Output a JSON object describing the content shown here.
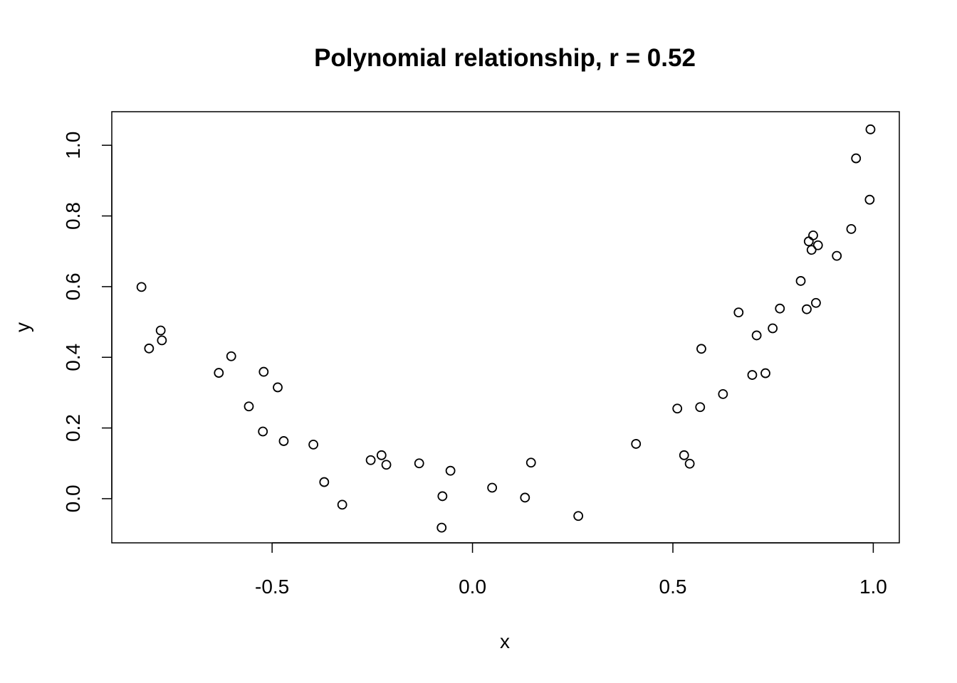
{
  "chart_data": {
    "type": "scatter",
    "title": "Polynomial relationship, r = 0.52",
    "xlabel": "x",
    "ylabel": "y",
    "xlim": [
      -0.9,
      1.065
    ],
    "ylim": [
      -0.125,
      1.095
    ],
    "xticks": [
      -0.5,
      0.0,
      0.5,
      1.0
    ],
    "xtick_labels": [
      "-0.5",
      "0.0",
      "0.5",
      "1.0"
    ],
    "yticks": [
      0.0,
      0.2,
      0.4,
      0.6,
      0.8,
      1.0
    ],
    "ytick_labels": [
      "0.0",
      "0.2",
      "0.4",
      "0.6",
      "0.8",
      "1.0"
    ],
    "grid": false,
    "marker": "open-circle",
    "points": [
      {
        "x": -0.826,
        "y": 0.599
      },
      {
        "x": -0.807,
        "y": 0.425
      },
      {
        "x": -0.778,
        "y": 0.476
      },
      {
        "x": -0.775,
        "y": 0.448
      },
      {
        "x": -0.633,
        "y": 0.356
      },
      {
        "x": -0.602,
        "y": 0.403
      },
      {
        "x": -0.558,
        "y": 0.261
      },
      {
        "x": -0.521,
        "y": 0.359
      },
      {
        "x": -0.523,
        "y": 0.19
      },
      {
        "x": -0.486,
        "y": 0.315
      },
      {
        "x": -0.471,
        "y": 0.163
      },
      {
        "x": -0.397,
        "y": 0.153
      },
      {
        "x": -0.37,
        "y": 0.047
      },
      {
        "x": -0.325,
        "y": -0.017
      },
      {
        "x": -0.254,
        "y": 0.109
      },
      {
        "x": -0.227,
        "y": 0.123
      },
      {
        "x": -0.215,
        "y": 0.096
      },
      {
        "x": -0.133,
        "y": 0.1
      },
      {
        "x": -0.077,
        "y": -0.082
      },
      {
        "x": -0.075,
        "y": 0.007
      },
      {
        "x": -0.055,
        "y": 0.079
      },
      {
        "x": 0.049,
        "y": 0.031
      },
      {
        "x": 0.131,
        "y": 0.003
      },
      {
        "x": 0.146,
        "y": 0.102
      },
      {
        "x": 0.264,
        "y": -0.049
      },
      {
        "x": 0.408,
        "y": 0.155
      },
      {
        "x": 0.511,
        "y": 0.255
      },
      {
        "x": 0.528,
        "y": 0.123
      },
      {
        "x": 0.542,
        "y": 0.099
      },
      {
        "x": 0.568,
        "y": 0.259
      },
      {
        "x": 0.571,
        "y": 0.424
      },
      {
        "x": 0.625,
        "y": 0.296
      },
      {
        "x": 0.664,
        "y": 0.527
      },
      {
        "x": 0.698,
        "y": 0.35
      },
      {
        "x": 0.709,
        "y": 0.462
      },
      {
        "x": 0.731,
        "y": 0.355
      },
      {
        "x": 0.749,
        "y": 0.482
      },
      {
        "x": 0.767,
        "y": 0.538
      },
      {
        "x": 0.819,
        "y": 0.616
      },
      {
        "x": 0.834,
        "y": 0.536
      },
      {
        "x": 0.839,
        "y": 0.728
      },
      {
        "x": 0.846,
        "y": 0.704
      },
      {
        "x": 0.85,
        "y": 0.745
      },
      {
        "x": 0.857,
        "y": 0.554
      },
      {
        "x": 0.862,
        "y": 0.717
      },
      {
        "x": 0.909,
        "y": 0.687
      },
      {
        "x": 0.945,
        "y": 0.763
      },
      {
        "x": 0.957,
        "y": 0.963
      },
      {
        "x": 0.991,
        "y": 0.846
      },
      {
        "x": 0.993,
        "y": 1.045
      }
    ]
  }
}
